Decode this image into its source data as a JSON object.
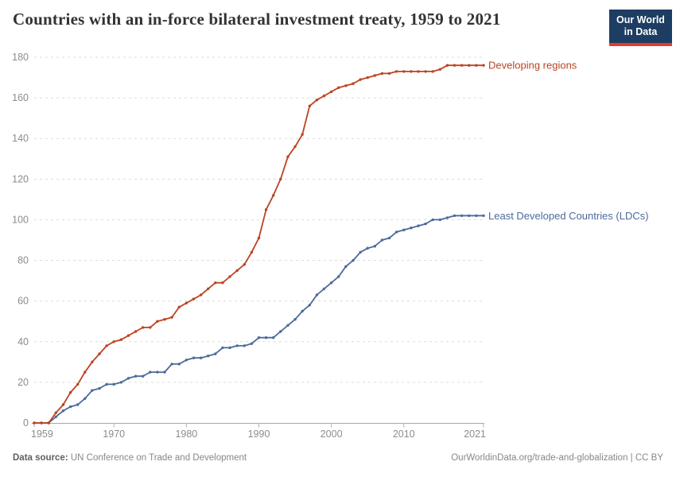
{
  "header": {
    "title": "Countries with an in-force bilateral investment treaty, 1959 to 2021",
    "logo": {
      "line1": "Our World",
      "line2": "in Data"
    }
  },
  "footer": {
    "source_label": "Data source:",
    "source_text": " UN Conference on Trade and Development",
    "link_text": "OurWorldinData.org/trade-and-globalization | CC BY"
  },
  "colors": {
    "developing": "#bc4322",
    "ldc": "#4c6a9c",
    "grid": "#dcdcdc",
    "axis_line": "#a8a8a8",
    "tick_mark": "#b0b0b0",
    "tick_label": "#8c8c8c",
    "logo_bg": "#1d3d63",
    "logo_accent": "#e8392b"
  },
  "chart_data": {
    "type": "line",
    "title": "Countries with an in-force bilateral investment treaty, 1959 to 2021",
    "xlabel": "",
    "ylabel": "",
    "ylim": [
      0,
      180
    ],
    "yticks": [
      0,
      20,
      40,
      60,
      80,
      100,
      120,
      140,
      160,
      180
    ],
    "xticks": [
      1959,
      1970,
      1980,
      1990,
      2000,
      2010,
      2021
    ],
    "grid": "horizontal-dashed",
    "legend_position": "end-of-line-labels",
    "x": [
      1959,
      1960,
      1961,
      1962,
      1963,
      1964,
      1965,
      1966,
      1967,
      1968,
      1969,
      1970,
      1971,
      1972,
      1973,
      1974,
      1975,
      1976,
      1977,
      1978,
      1979,
      1980,
      1981,
      1982,
      1983,
      1984,
      1985,
      1986,
      1987,
      1988,
      1989,
      1990,
      1991,
      1992,
      1993,
      1994,
      1995,
      1996,
      1997,
      1998,
      1999,
      2000,
      2001,
      2002,
      2003,
      2004,
      2005,
      2006,
      2007,
      2008,
      2009,
      2010,
      2011,
      2012,
      2013,
      2014,
      2015,
      2016,
      2017,
      2018,
      2019,
      2020,
      2021
    ],
    "series": [
      {
        "name": "Developing regions",
        "color": "#bc4322",
        "values": [
          0,
          0,
          0,
          5,
          9,
          15,
          19,
          25,
          30,
          34,
          38,
          40,
          41,
          43,
          45,
          47,
          47,
          50,
          51,
          52,
          57,
          59,
          61,
          63,
          66,
          69,
          69,
          72,
          75,
          78,
          84,
          91,
          105,
          112,
          120,
          131,
          136,
          142,
          156,
          159,
          161,
          163,
          165,
          166,
          167,
          169,
          170,
          171,
          172,
          172,
          173,
          173,
          173,
          173,
          173,
          173,
          174,
          176,
          176,
          176,
          176,
          176,
          176
        ]
      },
      {
        "name": "Least Developed Countries (LDCs)",
        "color": "#4c6a9c",
        "values": [
          0,
          0,
          0,
          3,
          6,
          8,
          9,
          12,
          16,
          17,
          19,
          19,
          20,
          22,
          23,
          23,
          25,
          25,
          25,
          29,
          29,
          31,
          32,
          32,
          33,
          34,
          37,
          37,
          38,
          38,
          39,
          42,
          42,
          42,
          45,
          48,
          51,
          55,
          58,
          63,
          66,
          69,
          72,
          77,
          80,
          84,
          86,
          87,
          90,
          91,
          94,
          95,
          96,
          97,
          98,
          100,
          100,
          101,
          102,
          102,
          102,
          102,
          102
        ]
      }
    ]
  }
}
